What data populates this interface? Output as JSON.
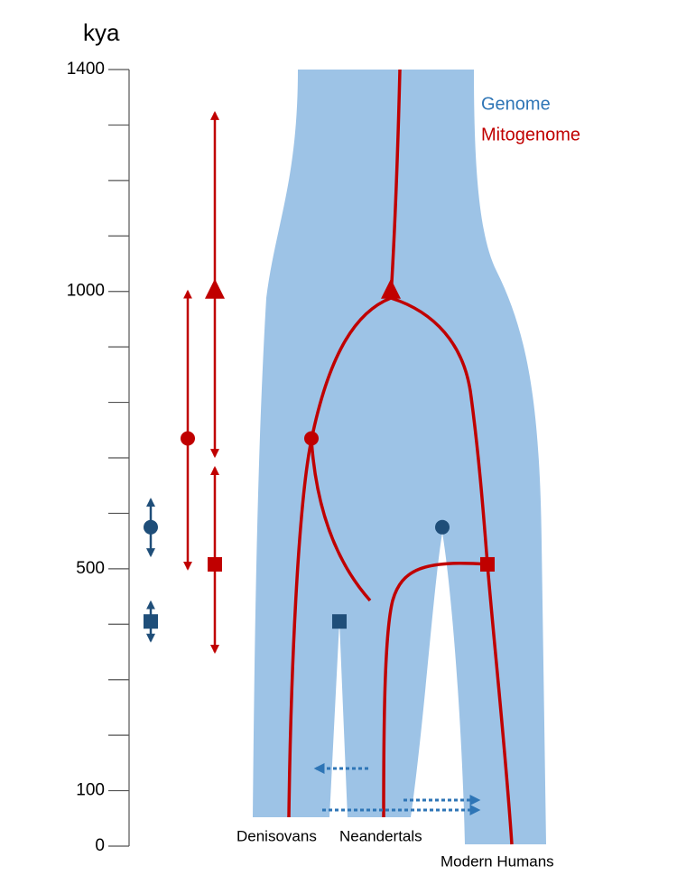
{
  "axis": {
    "title": "kya",
    "lim": [
      0,
      1400
    ],
    "ticks": [
      0,
      100,
      {
        "value": 200,
        "label": null
      },
      {
        "value": 300,
        "label": null
      },
      {
        "value": 400,
        "label": null
      },
      500,
      {
        "value": 600,
        "label": null
      },
      {
        "value": 700,
        "label": null
      },
      {
        "value": 800,
        "label": null
      },
      {
        "value": 900,
        "label": null
      },
      1000,
      {
        "value": 1100,
        "label": null
      },
      {
        "value": 1200,
        "label": null
      },
      {
        "value": 1300,
        "label": null
      },
      1400
    ]
  },
  "legend": {
    "genome": {
      "label": "Genome",
      "color": "#2e75b6"
    },
    "mitogenome": {
      "label": "Mitogenome",
      "color": "#c00000"
    }
  },
  "estimates": [
    {
      "shape": "circle",
      "color": "#1f4e79",
      "value": 575,
      "low": 524,
      "high": 625
    },
    {
      "shape": "square",
      "color": "#1f4e79",
      "value": 405,
      "low": 370,
      "high": 440
    },
    {
      "shape": "circle",
      "color": "#c00000",
      "value": 735,
      "low": 500,
      "high": 1000
    },
    {
      "shape": "triangle",
      "color": "#c00000",
      "value": 1000,
      "low": 703,
      "high": 1322
    },
    {
      "shape": "square",
      "color": "#c00000",
      "value": 508,
      "low": 350,
      "high": 682
    }
  ],
  "populations": [
    "Denisovans",
    "Neandertals",
    "Modern Humans"
  ]
}
